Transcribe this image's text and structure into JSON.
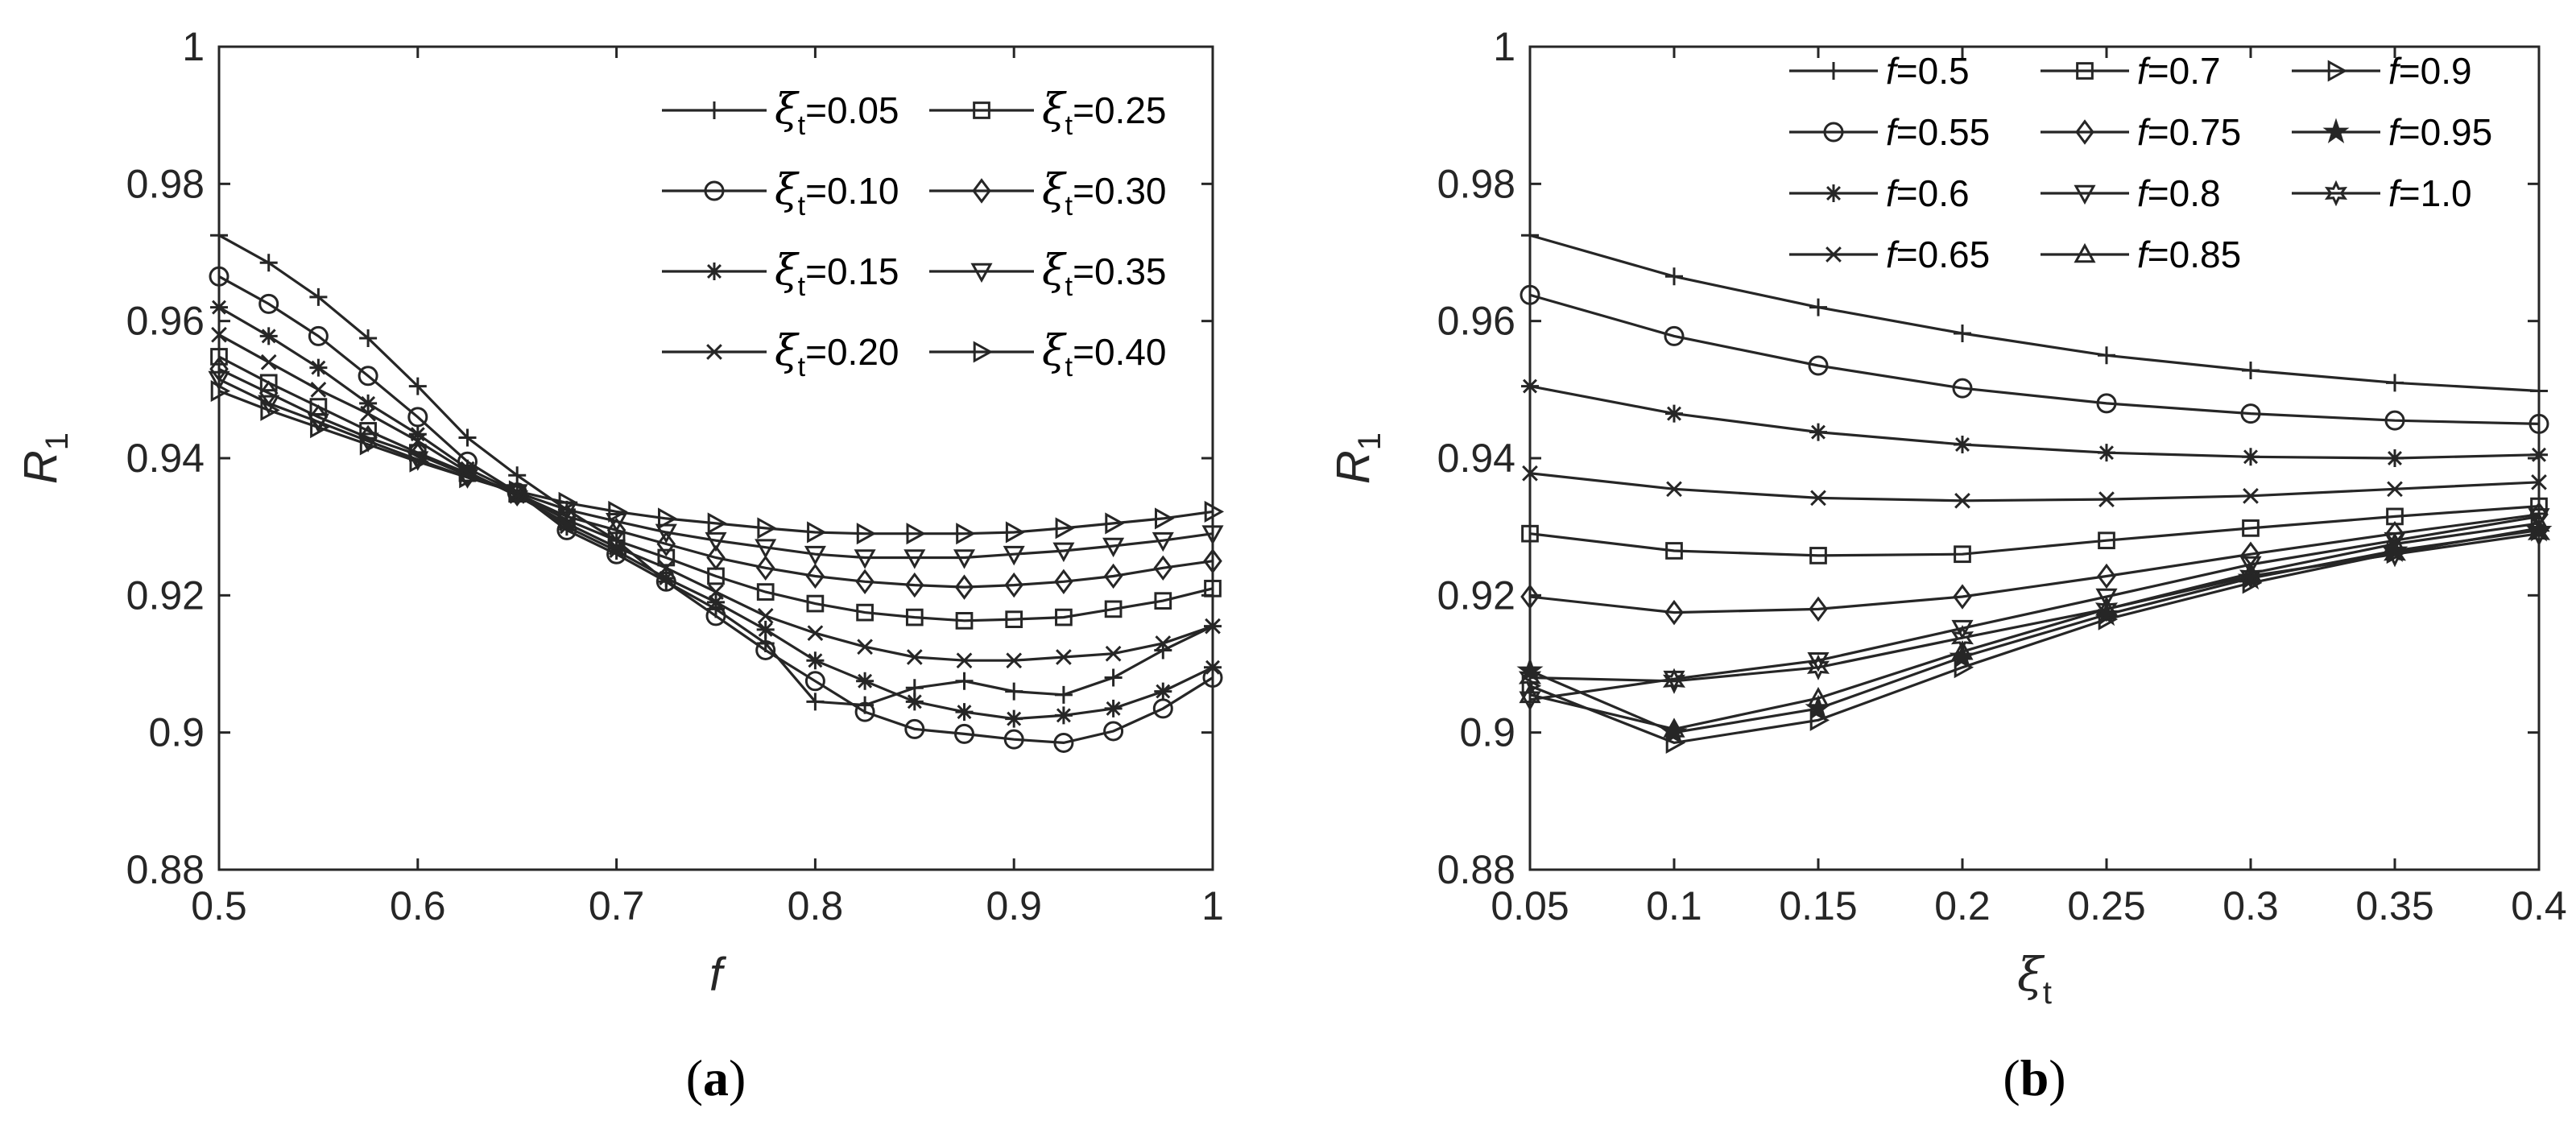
{
  "chart_data": [
    {
      "type": "line",
      "panel": "a",
      "panel_label": {
        "open": "(",
        "letter": "a",
        "close": ")"
      },
      "xlabel": "f",
      "ylabel": {
        "main": "R",
        "sub": "1"
      },
      "xlim": [
        0.5,
        1
      ],
      "ylim": [
        0.88,
        1
      ],
      "xticks": [
        "0.5",
        "0.6",
        "0.7",
        "0.8",
        "0.9",
        "1"
      ],
      "yticks": [
        "0.88",
        "0.9",
        "0.92",
        "0.94",
        "0.96",
        "0.98",
        "1"
      ],
      "x": [
        0.5,
        0.525,
        0.55,
        0.575,
        0.6,
        0.625,
        0.65,
        0.675,
        0.7,
        0.725,
        0.75,
        0.775,
        0.8,
        0.825,
        0.85,
        0.875,
        0.9,
        0.925,
        0.95,
        0.975,
        1.0
      ],
      "series": [
        {
          "name": "0.05",
          "sym": "ξ",
          "sub": "t",
          "marker": "plus",
          "values": [
            0.9725,
            0.9685,
            0.9635,
            0.9575,
            0.9505,
            0.943,
            0.9375,
            0.9325,
            0.928,
            0.922,
            0.918,
            0.913,
            0.9045,
            0.904,
            0.9065,
            0.9075,
            0.906,
            0.9055,
            0.908,
            0.912,
            0.9155
          ]
        },
        {
          "name": "0.10",
          "sym": "ξ",
          "sub": "t",
          "marker": "circle",
          "values": [
            0.9665,
            0.9625,
            0.9578,
            0.952,
            0.946,
            0.9395,
            0.935,
            0.9295,
            0.926,
            0.922,
            0.917,
            0.912,
            0.9075,
            0.903,
            0.9005,
            0.8998,
            0.899,
            0.8985,
            0.9002,
            0.9035,
            0.908
          ]
        },
        {
          "name": "0.15",
          "sym": "ξ",
          "sub": "t",
          "marker": "asterisk",
          "values": [
            0.962,
            0.9578,
            0.9532,
            0.948,
            0.9435,
            0.9385,
            0.935,
            0.93,
            0.9265,
            0.9225,
            0.919,
            0.915,
            0.9105,
            0.9075,
            0.9045,
            0.903,
            0.902,
            0.9025,
            0.9035,
            0.906,
            0.9095
          ]
        },
        {
          "name": "0.20",
          "sym": "ξ",
          "sub": "t",
          "marker": "x",
          "values": [
            0.958,
            0.954,
            0.95,
            0.9465,
            0.9425,
            0.938,
            0.9345,
            0.9305,
            0.927,
            0.924,
            0.9205,
            0.917,
            0.9145,
            0.9125,
            0.911,
            0.9105,
            0.9105,
            0.911,
            0.9115,
            0.913,
            0.9155
          ]
        },
        {
          "name": "0.25",
          "sym": "ξ",
          "sub": "t",
          "marker": "square",
          "values": [
            0.9548,
            0.951,
            0.9475,
            0.944,
            0.9408,
            0.9378,
            0.9348,
            0.931,
            0.928,
            0.9255,
            0.9228,
            0.9205,
            0.9188,
            0.9175,
            0.9168,
            0.9163,
            0.9165,
            0.9168,
            0.918,
            0.9192,
            0.921
          ]
        },
        {
          "name": "0.30",
          "sym": "ξ",
          "sub": "t",
          "marker": "diamond",
          "values": [
            0.953,
            0.9495,
            0.946,
            0.943,
            0.9405,
            0.9375,
            0.9348,
            0.9315,
            0.9295,
            0.9275,
            0.9255,
            0.924,
            0.9228,
            0.922,
            0.9215,
            0.9212,
            0.9215,
            0.922,
            0.9228,
            0.924,
            0.925
          ]
        },
        {
          "name": "0.35",
          "sym": "ξ",
          "sub": "t",
          "marker": "tri-down",
          "values": [
            0.9515,
            0.948,
            0.9453,
            0.9425,
            0.9398,
            0.9372,
            0.935,
            0.9325,
            0.9308,
            0.9292,
            0.928,
            0.927,
            0.926,
            0.9255,
            0.9255,
            0.9255,
            0.926,
            0.9265,
            0.9272,
            0.928,
            0.929
          ]
        },
        {
          "name": "0.40",
          "sym": "ξ",
          "sub": "t",
          "marker": "tri-right",
          "values": [
            0.9498,
            0.947,
            0.9445,
            0.942,
            0.9395,
            0.9372,
            0.9352,
            0.9335,
            0.9322,
            0.9312,
            0.9305,
            0.9298,
            0.9292,
            0.929,
            0.929,
            0.929,
            0.9292,
            0.9298,
            0.9305,
            0.9312,
            0.9322
          ]
        }
      ]
    },
    {
      "type": "line",
      "panel": "b",
      "panel_label": {
        "open": "(",
        "letter": "b",
        "close": ")"
      },
      "xlabel": {
        "main": "ξ",
        "sub": "t"
      },
      "ylabel": {
        "main": "R",
        "sub": "1"
      },
      "xlim": [
        0.05,
        0.4
      ],
      "ylim": [
        0.88,
        1
      ],
      "xticks": [
        "0.05",
        "0.1",
        "0.15",
        "0.2",
        "0.25",
        "0.3",
        "0.35",
        "0.4"
      ],
      "yticks": [
        "0.88",
        "0.9",
        "0.92",
        "0.94",
        "0.96",
        "0.98",
        "1"
      ],
      "x": [
        0.05,
        0.1,
        0.15,
        0.2,
        0.25,
        0.3,
        0.35,
        0.4
      ],
      "series": [
        {
          "name": "0.5",
          "sym": "f",
          "marker": "plus",
          "values": [
            0.9725,
            0.9665,
            0.962,
            0.9582,
            0.955,
            0.9528,
            0.951,
            0.9498
          ]
        },
        {
          "name": "0.55",
          "sym": "f",
          "marker": "circle",
          "values": [
            0.9638,
            0.9578,
            0.9535,
            0.9502,
            0.948,
            0.9465,
            0.9455,
            0.945
          ]
        },
        {
          "name": "0.6",
          "sym": "f",
          "marker": "asterisk",
          "values": [
            0.9505,
            0.9465,
            0.9438,
            0.942,
            0.9408,
            0.9402,
            0.94,
            0.9405
          ]
        },
        {
          "name": "0.65",
          "sym": "f",
          "marker": "x",
          "values": [
            0.9378,
            0.9355,
            0.9342,
            0.9338,
            0.934,
            0.9345,
            0.9355,
            0.9365
          ]
        },
        {
          "name": "0.7",
          "sym": "f",
          "marker": "square",
          "values": [
            0.929,
            0.9265,
            0.9258,
            0.926,
            0.928,
            0.9298,
            0.9315,
            0.933
          ]
        },
        {
          "name": "0.75",
          "sym": "f",
          "marker": "diamond",
          "values": [
            0.9198,
            0.9175,
            0.918,
            0.9198,
            0.9228,
            0.926,
            0.929,
            0.9318
          ]
        },
        {
          "name": "0.8",
          "sym": "f",
          "marker": "tri-down",
          "values": [
            0.9048,
            0.9078,
            0.9105,
            0.9152,
            0.9198,
            0.9245,
            0.928,
            0.9315
          ]
        },
        {
          "name": "0.85",
          "sym": "f",
          "marker": "tri-up",
          "values": [
            0.9055,
            0.9005,
            0.905,
            0.9118,
            0.918,
            0.9232,
            0.9275,
            0.9305
          ]
        },
        {
          "name": "0.9",
          "sym": "f",
          "marker": "tri-right",
          "values": [
            0.9068,
            0.8985,
            0.9018,
            0.9095,
            0.9165,
            0.9218,
            0.9262,
            0.9298
          ]
        },
        {
          "name": "0.95",
          "sym": "f",
          "marker": "star5",
          "values": [
            0.909,
            0.9,
            0.9035,
            0.911,
            0.9172,
            0.9225,
            0.9265,
            0.9295
          ]
        },
        {
          "name": "1.0",
          "sym": "f",
          "marker": "star6",
          "values": [
            0.908,
            0.9075,
            0.9095,
            0.9138,
            0.918,
            0.9228,
            0.926,
            0.929
          ]
        }
      ]
    }
  ]
}
